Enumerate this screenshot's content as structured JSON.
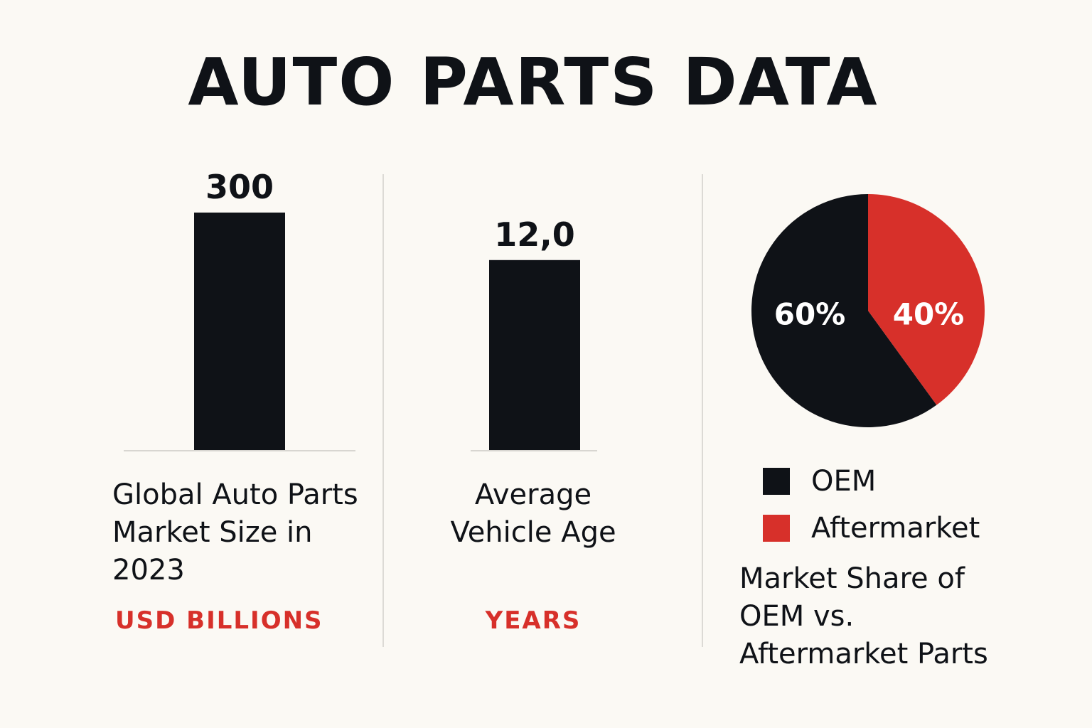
{
  "title": "AUTO PARTS DATA",
  "colors": {
    "dark": "#0f1217",
    "accent": "#d7302a"
  },
  "chart_data": [
    {
      "type": "bar",
      "categories": [
        "Global Auto Parts Market Size in 2023"
      ],
      "values": [
        300
      ],
      "value_labels": [
        "300"
      ],
      "label": "Global Auto Parts Market Size in 2023",
      "unit": "USD BILLIONS",
      "ylim": [
        0,
        300
      ]
    },
    {
      "type": "bar",
      "categories": [
        "Average Vehicle Age"
      ],
      "values": [
        12.0
      ],
      "value_labels": [
        "12,0"
      ],
      "label": "Average Vehicle Age",
      "unit": "YEARS",
      "ylim": [
        0,
        15
      ]
    },
    {
      "type": "pie",
      "title": "Market Share of OEM vs. Aftermarket Parts",
      "slices": [
        {
          "name": "OEM",
          "value": 60,
          "label": "60%"
        },
        {
          "name": "Aftermarket",
          "value": 40,
          "label": "40%"
        }
      ],
      "legend": [
        "OEM",
        "Aftermarket"
      ],
      "legend_placement": "bottom"
    }
  ]
}
